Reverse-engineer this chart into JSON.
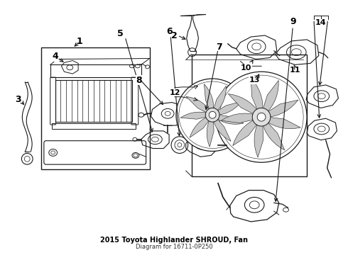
{
  "title": "2015 Toyota Highlander SHROUD, Fan",
  "subtitle": "Diagram for 16711-0P250",
  "bg_color": "#ffffff",
  "line_color": "#1a1a1a",
  "label_color": "#000000",
  "figsize": [
    4.9,
    3.6
  ],
  "dpi": 100
}
